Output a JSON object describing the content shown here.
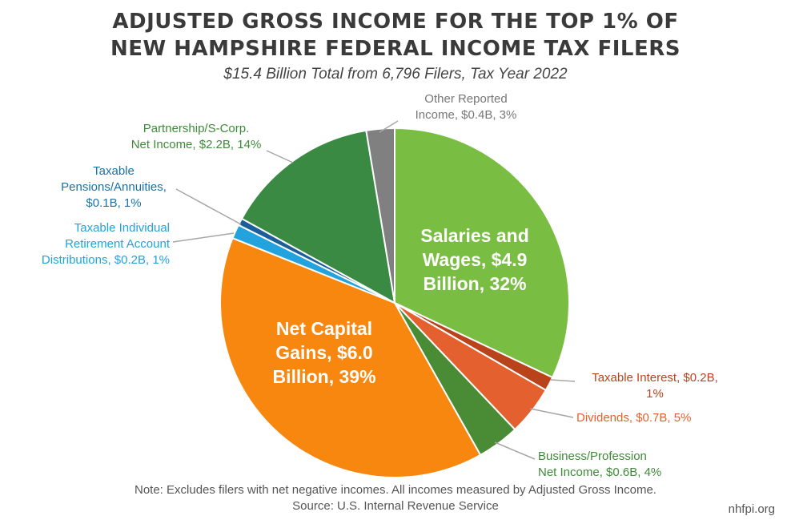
{
  "title_line1": "ADJUSTED GROSS INCOME FOR THE TOP 1% OF",
  "title_line2": "NEW HAMPSHIRE FEDERAL INCOME TAX FILERS",
  "subtitle": "$15.4 Billion Total from 6,796 Filers, Tax Year 2022",
  "note_line1": "Note: Excludes filers with net negative incomes. All incomes measured by Adjusted Gross Income.",
  "note_line2": "Source: U.S. Internal Revenue Service",
  "brand": "nhfpi.org",
  "chart_data": {
    "type": "pie",
    "title": "ADJUSTED GROSS INCOME FOR THE TOP 1% OF NEW HAMPSHIRE FEDERAL INCOME TAX FILERS",
    "subtitle": "$15.4 Billion Total from 6,796 Filers, Tax Year 2022",
    "unit": "Billion USD",
    "slices": [
      {
        "category": "Salaries and Wages",
        "value": 4.9,
        "percent": 32,
        "color": "#7ABD43",
        "label_lines": [
          "Salaries and",
          "Wages, $4.9",
          "Billion, 32%"
        ],
        "label_color": "#ffffff"
      },
      {
        "category": "Taxable Interest",
        "value": 0.2,
        "percent": 1,
        "color": "#B9441C",
        "label_lines": [
          "Taxable Interest, $0.2B,",
          "1%"
        ],
        "label_color": "#B9441C"
      },
      {
        "category": "Dividends",
        "value": 0.7,
        "percent": 5,
        "color": "#E4612F",
        "label_lines": [
          "Dividends, $0.7B, 5%"
        ],
        "label_color": "#E4612F"
      },
      {
        "category": "Business/Profession Net Income",
        "value": 0.6,
        "percent": 4,
        "color": "#4A8B36",
        "label_lines": [
          "Business/Profession",
          "Net Income, $0.6B, 4%"
        ],
        "label_color": "#3F8A3A"
      },
      {
        "category": "Net Capital Gains",
        "value": 6.0,
        "percent": 39,
        "color": "#F7870F",
        "label_lines": [
          "Net Capital",
          "Gains, $6.0",
          "Billion, 39%"
        ],
        "label_color": "#ffffff"
      },
      {
        "category": "Taxable Individual Retirement Account Distributions",
        "value": 0.2,
        "percent": 1,
        "color": "#22A3DD",
        "label_lines": [
          "Taxable Individual",
          "Retirement Account",
          "Distributions, $0.2B, 1%"
        ],
        "label_color": "#22A3DD"
      },
      {
        "category": "Taxable Pensions/Annuities",
        "value": 0.1,
        "percent": 1,
        "color": "#1A5E9A",
        "label_lines": [
          "Taxable",
          "Pensions/Annuities,",
          "$0.1B, 1%"
        ],
        "label_color": "#1A73A8"
      },
      {
        "category": "Partnership/S-Corp. Net Income",
        "value": 2.2,
        "percent": 14,
        "color": "#3A8A44",
        "label_lines": [
          "Partnership/S-Corp.",
          "Net Income, $2.2B, 14%"
        ],
        "label_color": "#3F8A3A"
      },
      {
        "category": "Other Reported Income",
        "value": 0.4,
        "percent": 3,
        "color": "#808080",
        "label_lines": [
          "Other Reported",
          "Income, $0.4B, 3%"
        ],
        "label_color": "#777777"
      }
    ]
  }
}
